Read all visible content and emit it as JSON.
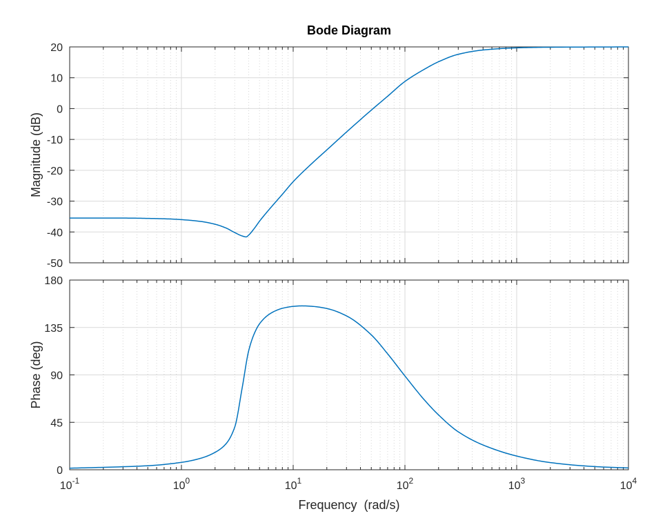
{
  "chart_data": {
    "type": "line",
    "title": "Bode Diagram",
    "xlabel": "Frequency  (rad/s)",
    "xscale": "log",
    "xlim": [
      0.1,
      10000
    ],
    "x_tick_base": "10",
    "x_tick_exponents": [
      "-1",
      "0",
      "1",
      "2",
      "3",
      "4"
    ],
    "x_tick_values": [
      0.1,
      1,
      10,
      100,
      1000,
      10000
    ],
    "grid": true,
    "line_color": "#0072bd",
    "subplots": [
      {
        "name": "magnitude",
        "ylabel": "Magnitude (dB)",
        "ylim": [
          -50,
          20
        ],
        "yticks": [
          20,
          10,
          0,
          -10,
          -20,
          -30,
          -40,
          -50
        ],
        "ytick_labels": [
          "20",
          "10",
          "0",
          "-10",
          "-20",
          "-30",
          "-40",
          "-50"
        ],
        "x": [
          0.1,
          0.3,
          0.5,
          0.8,
          1.0,
          1.5,
          2.0,
          2.5,
          3.0,
          3.5,
          3.8,
          4.0,
          4.5,
          5.0,
          6.0,
          7.0,
          8.0,
          10,
          15,
          20,
          30,
          50,
          70,
          100,
          150,
          200,
          300,
          500,
          1000,
          2000,
          10000
        ],
        "y": [
          -35.5,
          -35.5,
          -35.6,
          -35.8,
          -36.0,
          -36.6,
          -37.5,
          -38.7,
          -40.2,
          -41.3,
          -41.6,
          -41.0,
          -38.8,
          -36.5,
          -33.0,
          -30.2,
          -27.8,
          -23.7,
          -17.5,
          -13.4,
          -7.6,
          -0.5,
          4.0,
          8.8,
          12.8,
          15.2,
          17.6,
          19.0,
          19.7,
          19.9,
          20.0
        ]
      },
      {
        "name": "phase",
        "ylabel": "Phase (deg)",
        "ylim": [
          0,
          180
        ],
        "yticks": [
          180,
          135,
          90,
          45,
          0
        ],
        "ytick_labels": [
          "180",
          "135",
          "90",
          "45",
          "0"
        ],
        "x": [
          0.1,
          0.2,
          0.5,
          1.0,
          1.5,
          2.0,
          2.5,
          3.0,
          3.5,
          4.0,
          4.5,
          5.0,
          6.0,
          7.0,
          8.0,
          10,
          12,
          15,
          20,
          30,
          50,
          70,
          100,
          150,
          200,
          300,
          500,
          1000,
          2000,
          5000,
          10000
        ],
        "y": [
          1.5,
          2.3,
          3.8,
          7.0,
          11.0,
          16.5,
          24.5,
          40.5,
          78.0,
          113.0,
          129.5,
          138.5,
          147.0,
          151.0,
          153.2,
          155.0,
          155.5,
          155.0,
          153.0,
          146.0,
          128.0,
          110.0,
          89.0,
          66.0,
          52.0,
          36.0,
          23.5,
          13.0,
          6.8,
          3.0,
          1.7
        ]
      }
    ]
  }
}
